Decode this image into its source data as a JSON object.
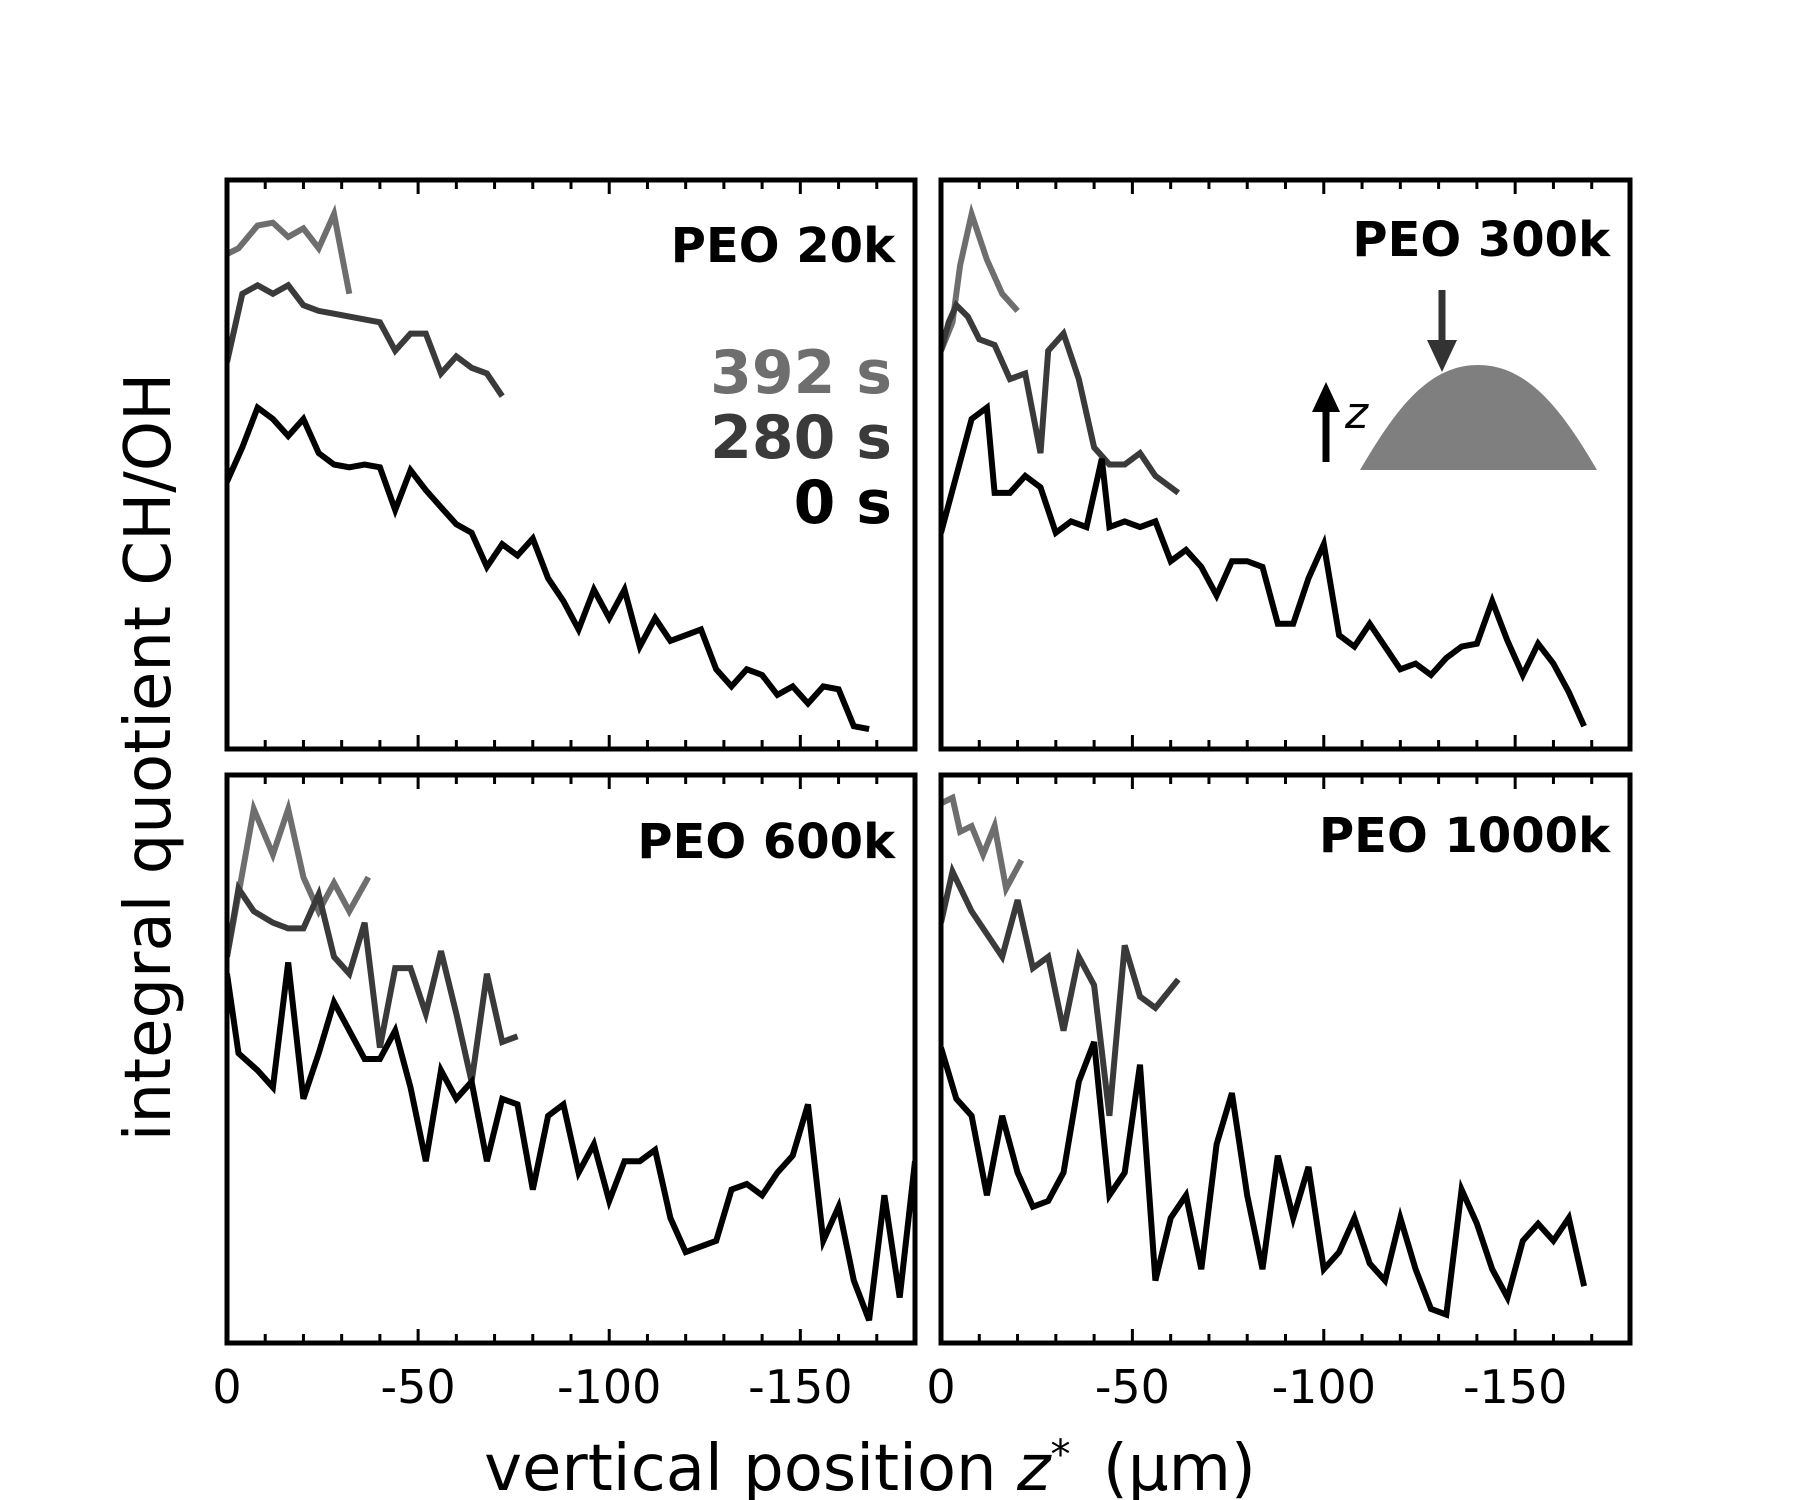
{
  "chart_data": {
    "type": "line",
    "layout": "2x2 panels, shared x and y axes",
    "xlabel": "vertical position",
    "xlabel_var": "z",
    "xlabel_sup": "*",
    "xlabel_unit": "(μm)",
    "ylabel": "integral quotient CH/OH",
    "xlim": [
      0,
      -180
    ],
    "ylim": [
      0,
      10
    ],
    "xticks": [
      0,
      -50,
      -100,
      -150
    ],
    "xtick_labels": [
      "0",
      "-50",
      "-100",
      "-150"
    ],
    "yticks_shown": false,
    "legend": {
      "placement": "inside top-left panel, right side",
      "entries": [
        {
          "label": "392 s",
          "color": "#6e6e6e"
        },
        {
          "label": "280 s",
          "color": "#3a3a3a"
        },
        {
          "label": "0 s",
          "color": "#000000"
        }
      ]
    },
    "inset": {
      "panel": "PEO 300k",
      "description": "drop sketch with arrow from above and upward z axis",
      "label": "z",
      "drop_color": "#7f7f7f"
    },
    "panels": [
      {
        "title": "PEO 20k",
        "series": [
          {
            "name": "392 s",
            "color": "#6e6e6e",
            "x": [
              0,
              -3,
              -8,
              -12,
              -16,
              -20,
              -24,
              -28,
              -32
            ],
            "y": [
              8.7,
              8.8,
              9.2,
              9.25,
              9.0,
              9.15,
              8.8,
              9.4,
              8.0
            ]
          },
          {
            "name": "280 s",
            "color": "#3a3a3a",
            "x": [
              0,
              -4,
              -8,
              -12,
              -16,
              -20,
              -24,
              -28,
              -32,
              -36,
              -40,
              -44,
              -48,
              -52,
              -56,
              -60,
              -64,
              -68,
              -72
            ],
            "y": [
              6.8,
              8.0,
              8.15,
              8.0,
              8.15,
              7.8,
              7.7,
              7.65,
              7.6,
              7.55,
              7.5,
              7.0,
              7.3,
              7.3,
              6.6,
              6.9,
              6.7,
              6.6,
              6.2
            ]
          },
          {
            "name": "0 s",
            "color": "#000000",
            "x": [
              0,
              -4,
              -8,
              -12,
              -16,
              -20,
              -24,
              -28,
              -32,
              -36,
              -40,
              -44,
              -48,
              -52,
              -56,
              -60,
              -64,
              -68,
              -72,
              -76,
              -80,
              -84,
              -88,
              -92,
              -96,
              -100,
              -104,
              -108,
              -112,
              -116,
              -120,
              -124,
              -128,
              -132,
              -136,
              -140,
              -144,
              -148,
              -152,
              -156,
              -160,
              -164,
              -168
            ],
            "y": [
              4.7,
              5.3,
              6.0,
              5.8,
              5.5,
              5.8,
              5.2,
              5.0,
              4.95,
              5.0,
              4.95,
              4.2,
              4.9,
              4.55,
              4.25,
              3.95,
              3.8,
              3.2,
              3.6,
              3.4,
              3.7,
              3.0,
              2.6,
              2.1,
              2.8,
              2.3,
              2.8,
              1.8,
              2.3,
              1.9,
              2.0,
              2.1,
              1.4,
              1.1,
              1.4,
              1.3,
              0.95,
              1.1,
              0.8,
              1.1,
              1.05,
              0.4,
              0.35
            ]
          }
        ]
      },
      {
        "title": "PEO 300k",
        "series": [
          {
            "name": "392 s",
            "color": "#6e6e6e",
            "x": [
              0,
              -3,
              -5,
              -8,
              -12,
              -16,
              -20
            ],
            "y": [
              7.0,
              7.5,
              8.5,
              9.4,
              8.6,
              8.0,
              7.7
            ]
          },
          {
            "name": "280 s",
            "color": "#3a3a3a",
            "x": [
              0,
              -2,
              -4,
              -7,
              -10,
              -14,
              -18,
              -22,
              -26,
              -28,
              -32,
              -36,
              -40,
              -44,
              -48,
              -52,
              -56,
              -62
            ],
            "y": [
              7.0,
              7.5,
              7.8,
              7.6,
              7.2,
              7.1,
              6.5,
              6.6,
              5.2,
              7.0,
              7.3,
              6.5,
              5.3,
              5.0,
              5.0,
              5.2,
              4.8,
              4.5
            ]
          },
          {
            "name": "0 s",
            "color": "#000000",
            "x": [
              0,
              -4,
              -8,
              -12,
              -14,
              -18,
              -22,
              -26,
              -30,
              -34,
              -38,
              -42,
              -44,
              -48,
              -52,
              -56,
              -60,
              -64,
              -68,
              -72,
              -76,
              -80,
              -84,
              -88,
              -92,
              -96,
              -100,
              -104,
              -108,
              -112,
              -116,
              -120,
              -124,
              -128,
              -132,
              -136,
              -140,
              -144,
              -148,
              -152,
              -156,
              -160,
              -164,
              -168
            ],
            "y": [
              3.8,
              4.8,
              5.8,
              6.0,
              4.5,
              4.5,
              4.8,
              4.6,
              3.8,
              4.0,
              3.9,
              5.1,
              3.9,
              4.0,
              3.9,
              4.0,
              3.3,
              3.5,
              3.2,
              2.7,
              3.3,
              3.3,
              3.2,
              2.2,
              2.2,
              3.0,
              3.6,
              2.0,
              1.8,
              2.2,
              1.8,
              1.4,
              1.5,
              1.3,
              1.6,
              1.8,
              1.85,
              2.6,
              1.9,
              1.3,
              1.85,
              1.5,
              1.0,
              0.4
            ]
          }
        ]
      },
      {
        "title": "PEO 600k",
        "series": [
          {
            "name": "392 s",
            "color": "#6e6e6e",
            "x": [
              0,
              -3,
              -7,
              -12,
              -16,
              -20,
              -24,
              -28,
              -32,
              -37
            ],
            "y": [
              6.8,
              7.9,
              9.4,
              8.6,
              9.4,
              8.2,
              7.6,
              8.1,
              7.6,
              8.2
            ]
          },
          {
            "name": "280 s",
            "color": "#3a3a3a",
            "x": [
              0,
              -3,
              -7,
              -12,
              -16,
              -20,
              -24,
              -28,
              -32,
              -36,
              -40,
              -44,
              -48,
              -52,
              -56,
              -60,
              -64,
              -68,
              -72,
              -76
            ],
            "y": [
              6.8,
              8.0,
              7.6,
              7.4,
              7.3,
              7.3,
              7.9,
              6.8,
              6.5,
              7.4,
              5.2,
              6.6,
              6.6,
              5.8,
              6.9,
              5.8,
              4.6,
              6.5,
              5.3,
              5.4
            ]
          },
          {
            "name": "0 s",
            "color": "#000000",
            "x": [
              0,
              -3,
              -8,
              -12,
              -16,
              -20,
              -24,
              -28,
              -32,
              -36,
              -40,
              -44,
              -48,
              -52,
              -56,
              -60,
              -64,
              -68,
              -72,
              -76,
              -80,
              -84,
              -88,
              -92,
              -96,
              -100,
              -104,
              -108,
              -112,
              -116,
              -120,
              -124,
              -128,
              -132,
              -136,
              -140,
              -144,
              -148,
              -152,
              -156,
              -160,
              -164,
              -168,
              -172,
              -176,
              -180
            ],
            "y": [
              6.5,
              5.1,
              4.8,
              4.5,
              6.7,
              4.3,
              5.1,
              6.0,
              5.5,
              5.0,
              5.0,
              5.5,
              4.5,
              3.2,
              4.8,
              4.3,
              4.6,
              3.2,
              4.3,
              4.2,
              2.7,
              4.0,
              4.2,
              3.0,
              3.5,
              2.5,
              3.2,
              3.2,
              3.4,
              2.2,
              1.6,
              1.7,
              1.8,
              2.7,
              2.8,
              2.6,
              3.0,
              3.3,
              4.2,
              1.8,
              2.4,
              1.1,
              0.4,
              2.6,
              0.8,
              3.2
            ]
          }
        ]
      },
      {
        "title": "PEO 1000k",
        "series": [
          {
            "name": "392 s",
            "color": "#6e6e6e",
            "x": [
              0,
              -3,
              -5,
              -8,
              -11,
              -14,
              -17,
              -21
            ],
            "y": [
              9.5,
              9.6,
              9.0,
              9.1,
              8.6,
              9.1,
              8.0,
              8.5
            ]
          },
          {
            "name": "280 s",
            "color": "#3a3a3a",
            "x": [
              0,
              -3,
              -8,
              -12,
              -16,
              -20,
              -24,
              -28,
              -32,
              -36,
              -40,
              -44,
              -48,
              -52,
              -56,
              -62
            ],
            "y": [
              7.4,
              8.3,
              7.6,
              7.2,
              6.8,
              7.8,
              6.6,
              6.8,
              5.5,
              6.8,
              6.3,
              4.0,
              7.0,
              6.1,
              5.9,
              6.4
            ]
          },
          {
            "name": "0 s",
            "color": "#000000",
            "x": [
              0,
              -4,
              -8,
              -12,
              -16,
              -20,
              -24,
              -28,
              -32,
              -36,
              -40,
              -44,
              -48,
              -52,
              -56,
              -60,
              -64,
              -68,
              -72,
              -76,
              -80,
              -84,
              -88,
              -92,
              -96,
              -100,
              -104,
              -108,
              -112,
              -116,
              -120,
              -124,
              -128,
              -132,
              -136,
              -140,
              -144,
              -148,
              -152,
              -156,
              -160,
              -164,
              -168
            ],
            "y": [
              5.2,
              4.3,
              4.0,
              2.6,
              4.0,
              3.0,
              2.4,
              2.5,
              3.0,
              4.6,
              5.3,
              2.6,
              3.0,
              4.9,
              1.1,
              2.2,
              2.6,
              1.3,
              3.5,
              4.4,
              2.6,
              1.3,
              3.3,
              2.2,
              3.1,
              1.3,
              1.6,
              2.2,
              1.4,
              1.1,
              2.2,
              1.3,
              0.6,
              0.5,
              2.7,
              2.1,
              1.3,
              0.8,
              1.8,
              2.1,
              1.8,
              2.2,
              1.0
            ]
          }
        ]
      }
    ]
  }
}
